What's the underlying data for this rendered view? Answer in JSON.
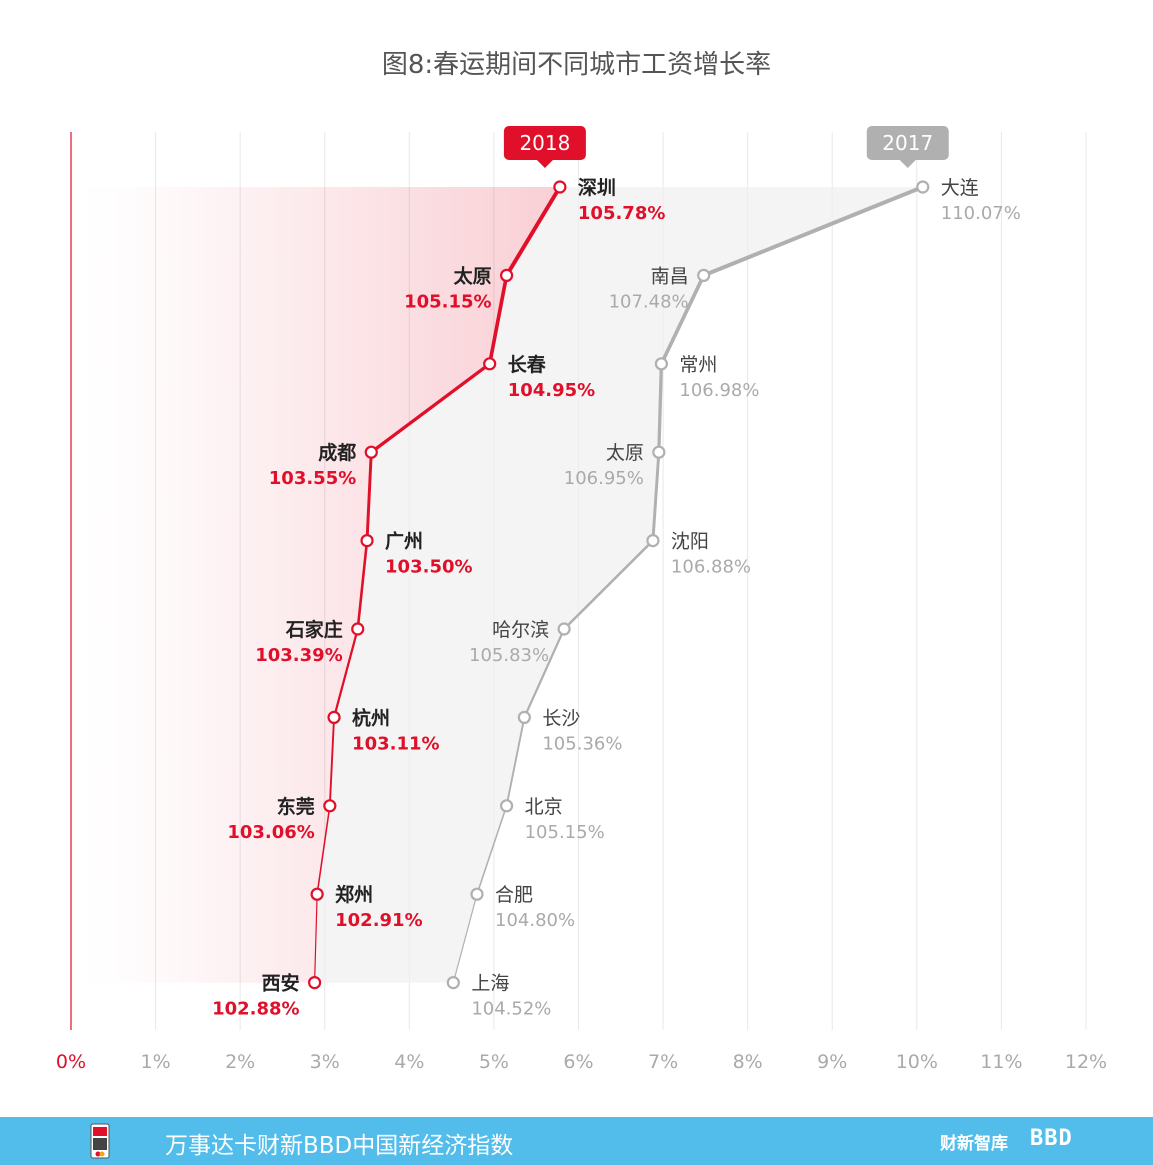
{
  "title": "图8:春运期间不同城市工资增长率",
  "footer": {
    "text": "万事达卡财新BBD中国新经济指数",
    "logo_caixin": "财新智库",
    "logo_bbd": "BBD"
  },
  "colors": {
    "series_2018": "#e0102a",
    "series_2017": "#b0b0b0",
    "axis_zero": "#e0102a",
    "grid": "#e8e8e8",
    "footer_bg": "#52bdeb"
  },
  "chart_data": {
    "type": "line",
    "xlim": [
      0,
      12
    ],
    "x_ticks": [
      "0%",
      "1%",
      "2%",
      "3%",
      "4%",
      "5%",
      "6%",
      "7%",
      "8%",
      "9%",
      "10%",
      "11%",
      "12%"
    ],
    "grid": "vertical",
    "ranks": [
      1,
      2,
      3,
      4,
      5,
      6,
      7,
      8,
      9,
      10
    ],
    "series": [
      {
        "name": "2018",
        "points": [
          {
            "city": "深圳",
            "x": 5.78,
            "label": "105.78%"
          },
          {
            "city": "太原",
            "x": 5.15,
            "label": "105.15%"
          },
          {
            "city": "长春",
            "x": 4.95,
            "label": "104.95%"
          },
          {
            "city": "成都",
            "x": 3.55,
            "label": "103.55%"
          },
          {
            "city": "广州",
            "x": 3.5,
            "label": "103.50%"
          },
          {
            "city": "石家庄",
            "x": 3.39,
            "label": "103.39%"
          },
          {
            "city": "杭州",
            "x": 3.11,
            "label": "103.11%"
          },
          {
            "city": "东莞",
            "x": 3.06,
            "label": "103.06%"
          },
          {
            "city": "郑州",
            "x": 2.91,
            "label": "102.91%"
          },
          {
            "city": "西安",
            "x": 2.88,
            "label": "102.88%"
          }
        ]
      },
      {
        "name": "2017",
        "points": [
          {
            "city": "大连",
            "x": 10.07,
            "label": "110.07%"
          },
          {
            "city": "南昌",
            "x": 7.48,
            "label": "107.48%"
          },
          {
            "city": "常州",
            "x": 6.98,
            "label": "106.98%"
          },
          {
            "city": "太原",
            "x": 6.95,
            "label": "106.95%"
          },
          {
            "city": "沈阳",
            "x": 6.88,
            "label": "106.88%"
          },
          {
            "city": "哈尔滨",
            "x": 5.83,
            "label": "105.83%"
          },
          {
            "city": "长沙",
            "x": 5.36,
            "label": "105.36%"
          },
          {
            "city": "北京",
            "x": 5.15,
            "label": "105.15%"
          },
          {
            "city": "合肥",
            "x": 4.8,
            "label": "104.80%"
          },
          {
            "city": "上海",
            "x": 4.52,
            "label": "104.52%"
          }
        ]
      }
    ]
  }
}
